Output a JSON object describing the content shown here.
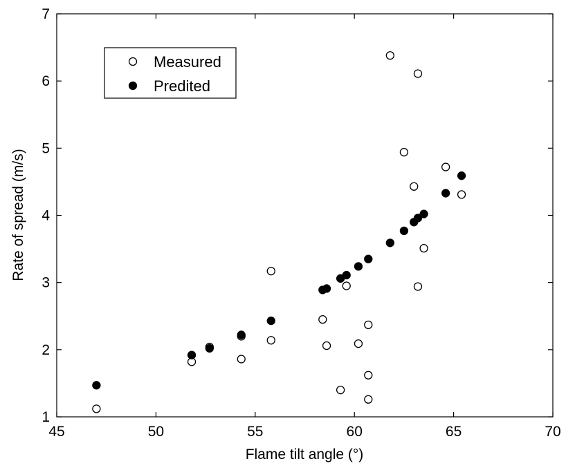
{
  "chart_data": {
    "type": "scatter",
    "xlabel": "Flame tilt angle (°)",
    "ylabel": "Rate of spread (m/s)",
    "xlim": [
      45,
      70
    ],
    "ylim": [
      1,
      7
    ],
    "xticks": [
      45,
      50,
      55,
      60,
      65,
      70
    ],
    "yticks": [
      1,
      2,
      3,
      4,
      5,
      6,
      7
    ],
    "grid": false,
    "legend_position": "top-left",
    "series": [
      {
        "name": "Measured",
        "marker": "open-circle",
        "color": "#000000",
        "points": [
          {
            "x": 47.0,
            "y": 1.12
          },
          {
            "x": 51.8,
            "y": 1.82
          },
          {
            "x": 52.7,
            "y": 2.04
          },
          {
            "x": 54.3,
            "y": 2.2
          },
          {
            "x": 54.3,
            "y": 1.86
          },
          {
            "x": 55.8,
            "y": 3.17
          },
          {
            "x": 55.8,
            "y": 2.14
          },
          {
            "x": 58.4,
            "y": 2.45
          },
          {
            "x": 58.6,
            "y": 2.06
          },
          {
            "x": 59.3,
            "y": 1.4
          },
          {
            "x": 59.6,
            "y": 2.95
          },
          {
            "x": 60.2,
            "y": 2.09
          },
          {
            "x": 60.7,
            "y": 2.37
          },
          {
            "x": 60.7,
            "y": 1.62
          },
          {
            "x": 60.7,
            "y": 1.26
          },
          {
            "x": 61.8,
            "y": 6.38
          },
          {
            "x": 62.5,
            "y": 4.94
          },
          {
            "x": 63.0,
            "y": 4.43
          },
          {
            "x": 63.2,
            "y": 6.11
          },
          {
            "x": 63.2,
            "y": 2.94
          },
          {
            "x": 63.5,
            "y": 3.51
          },
          {
            "x": 64.6,
            "y": 4.72
          },
          {
            "x": 65.4,
            "y": 4.31
          }
        ]
      },
      {
        "name": "Predited",
        "marker": "filled-circle",
        "color": "#000000",
        "points": [
          {
            "x": 47.0,
            "y": 1.47
          },
          {
            "x": 51.8,
            "y": 1.92
          },
          {
            "x": 52.7,
            "y": 2.02
          },
          {
            "x": 54.3,
            "y": 2.22
          },
          {
            "x": 55.8,
            "y": 2.43
          },
          {
            "x": 58.4,
            "y": 2.89
          },
          {
            "x": 58.6,
            "y": 2.91
          },
          {
            "x": 59.3,
            "y": 3.06
          },
          {
            "x": 59.6,
            "y": 3.11
          },
          {
            "x": 60.2,
            "y": 3.24
          },
          {
            "x": 60.7,
            "y": 3.35
          },
          {
            "x": 61.8,
            "y": 3.59
          },
          {
            "x": 62.5,
            "y": 3.77
          },
          {
            "x": 63.0,
            "y": 3.9
          },
          {
            "x": 63.2,
            "y": 3.96
          },
          {
            "x": 63.5,
            "y": 4.02
          },
          {
            "x": 64.6,
            "y": 4.33
          },
          {
            "x": 65.4,
            "y": 4.59
          }
        ]
      }
    ]
  }
}
